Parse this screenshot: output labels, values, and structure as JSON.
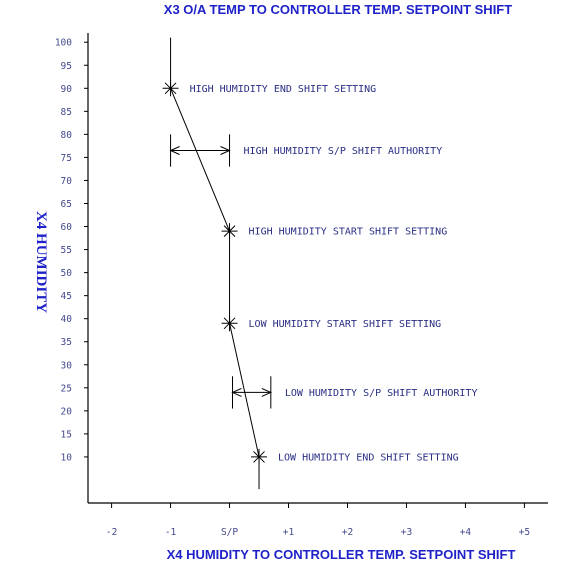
{
  "chart_data": {
    "type": "line",
    "title": "X3 O/A TEMP TO CONTROLLER TEMP. SETPOINT SHIFT",
    "xlabel": "X4 HUMIDITY TO CONTROLLER TEMP. SETPOINT SHIFT",
    "ylabel": "X4 HUMIDITY",
    "x_ticks": [
      {
        "value": -2,
        "label": "-2"
      },
      {
        "value": -1,
        "label": "-1"
      },
      {
        "value": 0,
        "label": "S/P"
      },
      {
        "value": 1,
        "label": "+1"
      },
      {
        "value": 2,
        "label": "+2"
      },
      {
        "value": 3,
        "label": "+3"
      },
      {
        "value": 4,
        "label": "+4"
      },
      {
        "value": 5,
        "label": "+5"
      }
    ],
    "y_ticks": [
      10,
      15,
      20,
      25,
      30,
      35,
      40,
      45,
      50,
      55,
      60,
      65,
      70,
      75,
      80,
      85,
      90,
      95,
      100
    ],
    "xlim": [
      -2.4,
      5.4
    ],
    "ylim": [
      0,
      102
    ],
    "grid": false,
    "upper_line": {
      "x": -1,
      "y_from": 90,
      "y_to": 101
    },
    "lower_line": {
      "x": 0.5,
      "y_from": 3,
      "y_to": 10
    },
    "series": [
      {
        "x": [
          -1,
          0,
          0,
          0.5
        ],
        "y": [
          90,
          59,
          39,
          10
        ]
      }
    ],
    "points": [
      {
        "x": -1,
        "y": 90,
        "label": "HIGH HUMIDITY END SHIFT SETTING"
      },
      {
        "x": 0,
        "y": 59,
        "label": "HIGH HUMIDITY START SHIFT SETTING"
      },
      {
        "x": 0,
        "y": 39,
        "label": "LOW HUMIDITY START SHIFT SETTING"
      },
      {
        "x": 0.5,
        "y": 10,
        "label": "LOW HUMIDITY END SHIFT SETTING"
      }
    ],
    "authorities": [
      {
        "x_from": -1,
        "x_to": 0,
        "y": 76.5,
        "bar_y_from": 73,
        "bar_y_to": 80,
        "label": "HIGH  HUMIDITY S/P SHIFT AUTHORITY"
      },
      {
        "x_from": 0.05,
        "x_to": 0.7,
        "y": 24,
        "bar_y_from": 20.5,
        "bar_y_to": 27.5,
        "label": "LOW HUMIDITY S/P SHIFT AUTHORITY"
      }
    ]
  }
}
